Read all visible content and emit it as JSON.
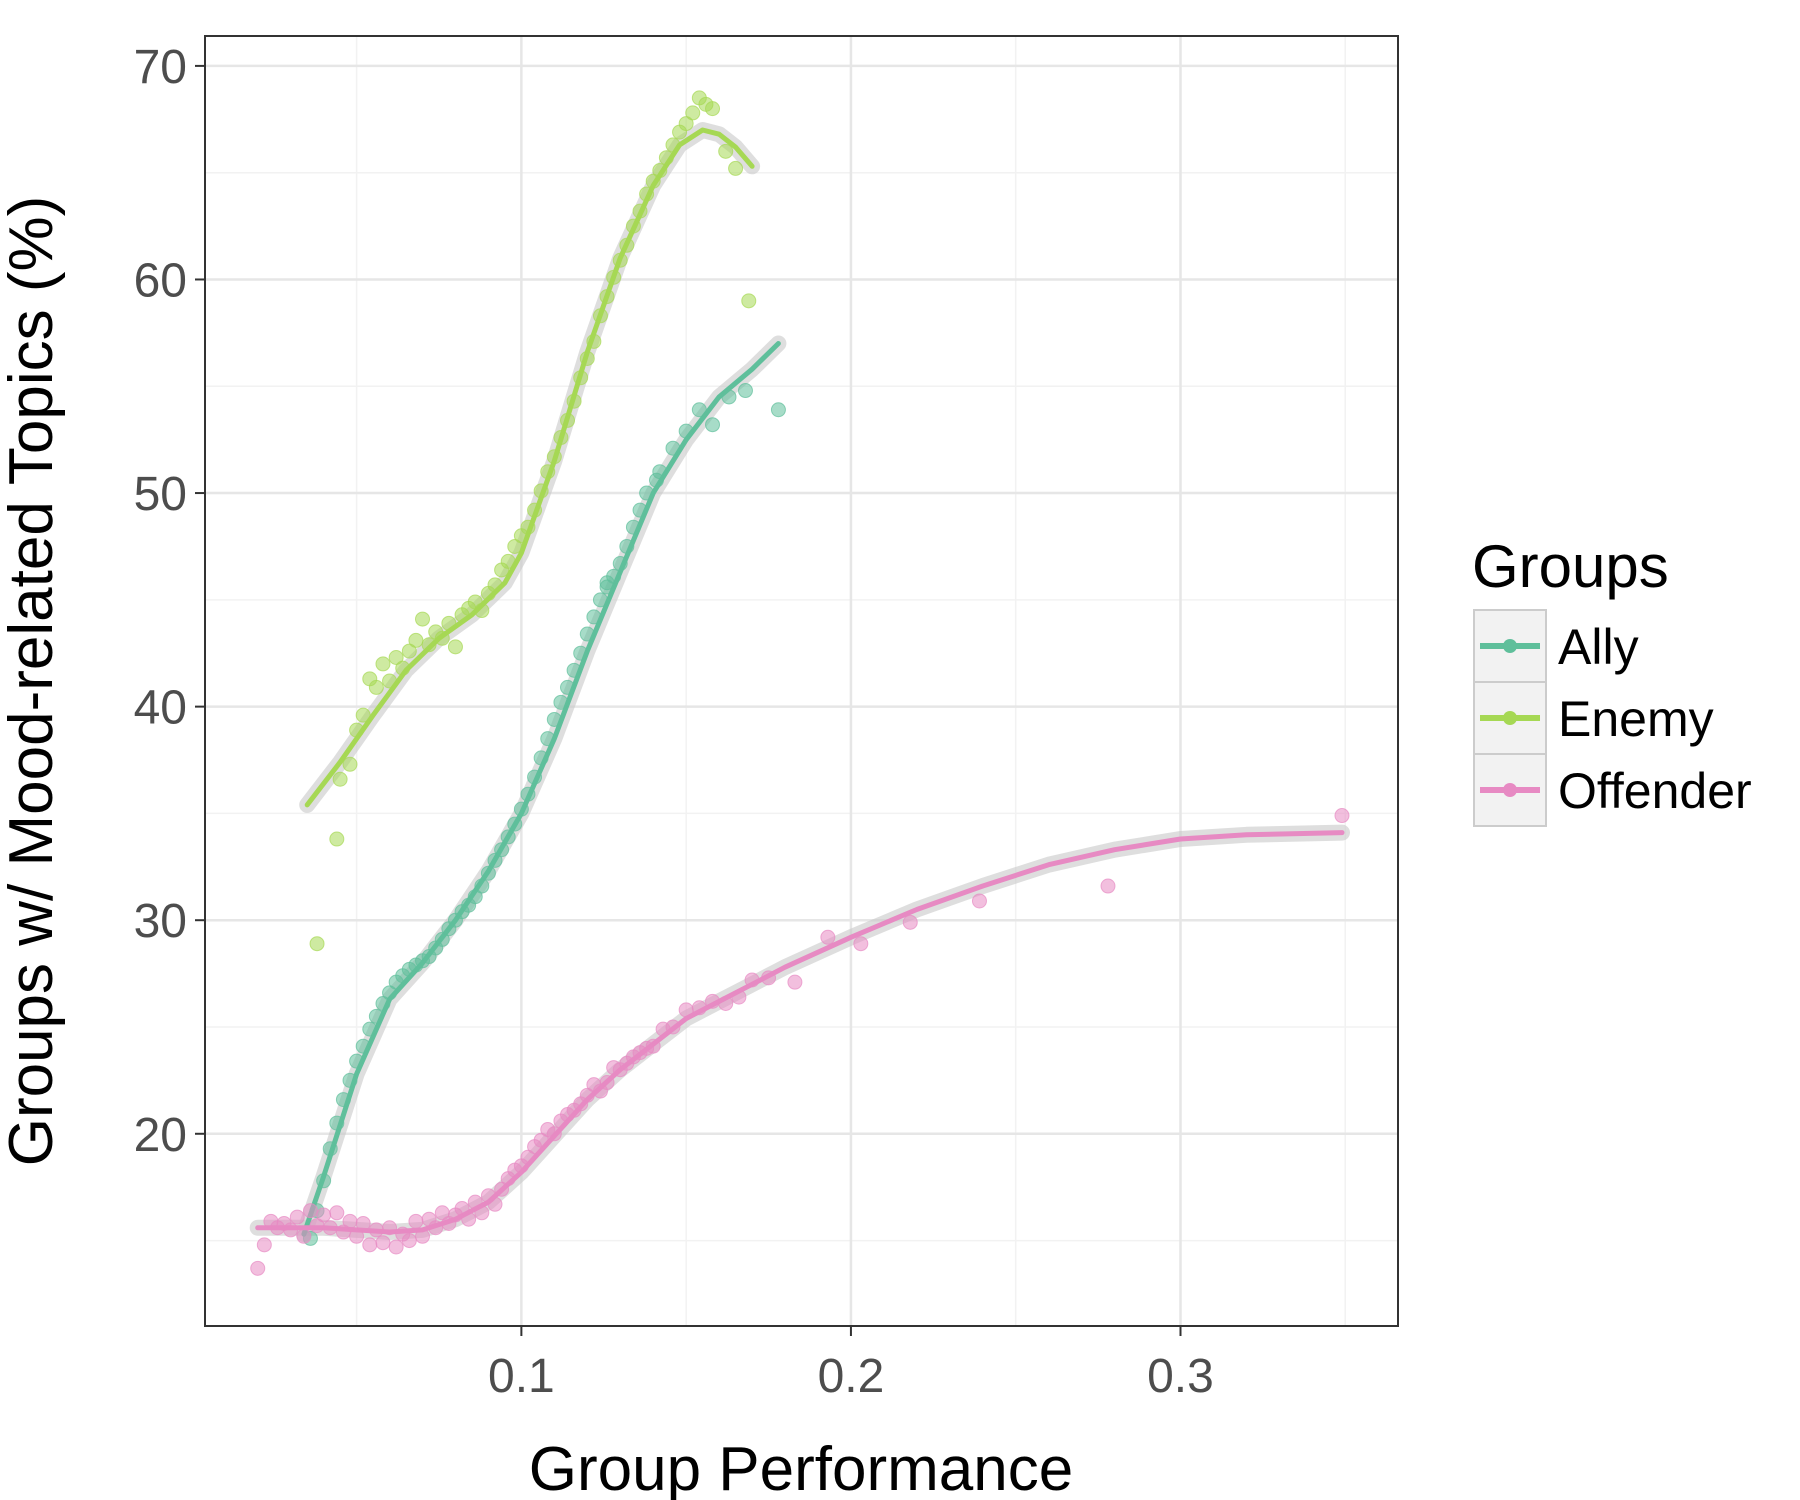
{
  "chart_data": {
    "type": "scatter",
    "title": "",
    "xlabel": "Group Performance",
    "ylabel": "Groups w/ Mood-related Topics (%)",
    "xlim": [
      0.004,
      0.366
    ],
    "ylim": [
      11.0,
      71.4
    ],
    "x_ticks": [
      0.1,
      0.2,
      0.3
    ],
    "x_tick_labels": [
      "0.1",
      "0.2",
      "0.3"
    ],
    "y_ticks": [
      20,
      30,
      40,
      50,
      60,
      70
    ],
    "y_tick_labels": [
      "20",
      "30",
      "40",
      "50",
      "60",
      "70"
    ],
    "grid": true,
    "legend": {
      "title": "Groups",
      "position": "right"
    },
    "series": [
      {
        "name": "Ally",
        "color": "#5fbf9b",
        "points": [
          [
            0.036,
            15.1
          ],
          [
            0.038,
            16.4
          ],
          [
            0.04,
            17.8
          ],
          [
            0.042,
            19.3
          ],
          [
            0.044,
            20.5
          ],
          [
            0.046,
            21.6
          ],
          [
            0.048,
            22.5
          ],
          [
            0.05,
            23.4
          ],
          [
            0.052,
            24.1
          ],
          [
            0.054,
            24.9
          ],
          [
            0.056,
            25.5
          ],
          [
            0.058,
            26.1
          ],
          [
            0.06,
            26.6
          ],
          [
            0.062,
            27.1
          ],
          [
            0.064,
            27.4
          ],
          [
            0.066,
            27.7
          ],
          [
            0.068,
            27.9
          ],
          [
            0.07,
            28.1
          ],
          [
            0.072,
            28.3
          ],
          [
            0.074,
            28.7
          ],
          [
            0.076,
            29.1
          ],
          [
            0.078,
            29.6
          ],
          [
            0.08,
            30.0
          ],
          [
            0.082,
            30.4
          ],
          [
            0.084,
            30.7
          ],
          [
            0.086,
            31.1
          ],
          [
            0.088,
            31.6
          ],
          [
            0.09,
            32.2
          ],
          [
            0.092,
            32.8
          ],
          [
            0.094,
            33.3
          ],
          [
            0.096,
            33.9
          ],
          [
            0.098,
            34.5
          ],
          [
            0.1,
            35.2
          ],
          [
            0.102,
            35.9
          ],
          [
            0.104,
            36.7
          ],
          [
            0.106,
            37.6
          ],
          [
            0.108,
            38.5
          ],
          [
            0.11,
            39.4
          ],
          [
            0.112,
            40.2
          ],
          [
            0.114,
            40.9
          ],
          [
            0.116,
            41.7
          ],
          [
            0.118,
            42.5
          ],
          [
            0.12,
            43.4
          ],
          [
            0.122,
            44.2
          ],
          [
            0.124,
            45.0
          ],
          [
            0.126,
            45.6
          ],
          [
            0.128,
            46.1
          ],
          [
            0.13,
            46.7
          ],
          [
            0.132,
            47.5
          ],
          [
            0.134,
            48.4
          ],
          [
            0.136,
            49.2
          ],
          [
            0.138,
            50.0
          ],
          [
            0.142,
            51.0
          ],
          [
            0.146,
            52.1
          ],
          [
            0.15,
            52.9
          ],
          [
            0.154,
            53.9
          ],
          [
            0.158,
            53.2
          ],
          [
            0.163,
            54.5
          ],
          [
            0.168,
            54.8
          ],
          [
            0.178,
            53.9
          ],
          [
            0.141,
            50.6
          ],
          [
            0.126,
            45.8
          ]
        ],
        "fit": [
          [
            0.034,
            15.3
          ],
          [
            0.04,
            18.0
          ],
          [
            0.05,
            22.8
          ],
          [
            0.06,
            26.3
          ],
          [
            0.07,
            28.0
          ],
          [
            0.08,
            30.0
          ],
          [
            0.09,
            32.3
          ],
          [
            0.1,
            35.0
          ],
          [
            0.11,
            38.5
          ],
          [
            0.12,
            42.6
          ],
          [
            0.13,
            46.3
          ],
          [
            0.14,
            50.0
          ],
          [
            0.15,
            52.5
          ],
          [
            0.16,
            54.5
          ],
          [
            0.17,
            55.8
          ],
          [
            0.178,
            57.0
          ]
        ]
      },
      {
        "name": "Enemy",
        "color": "#a6d854",
        "points": [
          [
            0.038,
            28.9
          ],
          [
            0.044,
            33.8
          ],
          [
            0.045,
            36.6
          ],
          [
            0.048,
            37.3
          ],
          [
            0.05,
            38.9
          ],
          [
            0.052,
            39.6
          ],
          [
            0.054,
            41.3
          ],
          [
            0.056,
            40.9
          ],
          [
            0.058,
            42.0
          ],
          [
            0.06,
            41.2
          ],
          [
            0.062,
            42.3
          ],
          [
            0.064,
            41.8
          ],
          [
            0.066,
            42.6
          ],
          [
            0.068,
            43.1
          ],
          [
            0.07,
            44.1
          ],
          [
            0.072,
            42.9
          ],
          [
            0.074,
            43.5
          ],
          [
            0.076,
            43.2
          ],
          [
            0.078,
            43.9
          ],
          [
            0.08,
            42.8
          ],
          [
            0.082,
            44.3
          ],
          [
            0.084,
            44.6
          ],
          [
            0.086,
            44.9
          ],
          [
            0.088,
            44.5
          ],
          [
            0.09,
            45.3
          ],
          [
            0.092,
            45.7
          ],
          [
            0.094,
            46.4
          ],
          [
            0.096,
            46.8
          ],
          [
            0.098,
            47.5
          ],
          [
            0.1,
            48.0
          ],
          [
            0.102,
            48.4
          ],
          [
            0.104,
            49.2
          ],
          [
            0.106,
            50.1
          ],
          [
            0.108,
            51.0
          ],
          [
            0.11,
            51.7
          ],
          [
            0.112,
            52.6
          ],
          [
            0.114,
            53.4
          ],
          [
            0.116,
            54.3
          ],
          [
            0.118,
            55.4
          ],
          [
            0.12,
            56.3
          ],
          [
            0.122,
            57.1
          ],
          [
            0.124,
            58.3
          ],
          [
            0.126,
            59.2
          ],
          [
            0.128,
            60.1
          ],
          [
            0.13,
            60.9
          ],
          [
            0.132,
            61.6
          ],
          [
            0.134,
            62.5
          ],
          [
            0.136,
            63.2
          ],
          [
            0.138,
            64.0
          ],
          [
            0.14,
            64.6
          ],
          [
            0.142,
            65.1
          ],
          [
            0.144,
            65.7
          ],
          [
            0.146,
            66.3
          ],
          [
            0.148,
            66.9
          ],
          [
            0.15,
            67.3
          ],
          [
            0.152,
            67.8
          ],
          [
            0.154,
            68.5
          ],
          [
            0.156,
            68.2
          ],
          [
            0.158,
            68.0
          ],
          [
            0.162,
            66.0
          ],
          [
            0.165,
            65.2
          ],
          [
            0.169,
            59.0
          ]
        ],
        "fit": [
          [
            0.035,
            35.4
          ],
          [
            0.045,
            37.4
          ],
          [
            0.055,
            39.6
          ],
          [
            0.065,
            41.7
          ],
          [
            0.075,
            43.2
          ],
          [
            0.085,
            44.3
          ],
          [
            0.095,
            45.8
          ],
          [
            0.1,
            47.2
          ],
          [
            0.11,
            51.5
          ],
          [
            0.12,
            56.6
          ],
          [
            0.13,
            61.0
          ],
          [
            0.14,
            64.4
          ],
          [
            0.148,
            66.3
          ],
          [
            0.155,
            67.0
          ],
          [
            0.16,
            66.8
          ],
          [
            0.165,
            66.2
          ],
          [
            0.17,
            65.3
          ]
        ]
      },
      {
        "name": "Offender",
        "color": "#e78ac3",
        "points": [
          [
            0.02,
            13.7
          ],
          [
            0.022,
            14.8
          ],
          [
            0.024,
            15.9
          ],
          [
            0.026,
            15.6
          ],
          [
            0.028,
            15.8
          ],
          [
            0.03,
            15.5
          ],
          [
            0.032,
            16.1
          ],
          [
            0.034,
            15.2
          ],
          [
            0.036,
            16.4
          ],
          [
            0.038,
            15.7
          ],
          [
            0.04,
            16.2
          ],
          [
            0.042,
            15.6
          ],
          [
            0.044,
            16.3
          ],
          [
            0.046,
            15.4
          ],
          [
            0.048,
            15.9
          ],
          [
            0.05,
            15.2
          ],
          [
            0.052,
            15.8
          ],
          [
            0.054,
            14.8
          ],
          [
            0.056,
            15.5
          ],
          [
            0.058,
            14.9
          ],
          [
            0.06,
            15.6
          ],
          [
            0.062,
            14.7
          ],
          [
            0.064,
            15.3
          ],
          [
            0.066,
            15.0
          ],
          [
            0.068,
            15.9
          ],
          [
            0.07,
            15.2
          ],
          [
            0.072,
            16.0
          ],
          [
            0.074,
            15.6
          ],
          [
            0.076,
            16.3
          ],
          [
            0.078,
            15.8
          ],
          [
            0.08,
            16.2
          ],
          [
            0.082,
            16.5
          ],
          [
            0.084,
            16.0
          ],
          [
            0.086,
            16.8
          ],
          [
            0.088,
            16.3
          ],
          [
            0.09,
            17.1
          ],
          [
            0.092,
            16.7
          ],
          [
            0.094,
            17.4
          ],
          [
            0.096,
            17.9
          ],
          [
            0.098,
            18.3
          ],
          [
            0.1,
            18.5
          ],
          [
            0.102,
            18.9
          ],
          [
            0.104,
            19.4
          ],
          [
            0.106,
            19.7
          ],
          [
            0.108,
            20.2
          ],
          [
            0.11,
            20.0
          ],
          [
            0.112,
            20.6
          ],
          [
            0.114,
            20.9
          ],
          [
            0.116,
            21.1
          ],
          [
            0.118,
            21.4
          ],
          [
            0.12,
            21.8
          ],
          [
            0.122,
            22.3
          ],
          [
            0.124,
            22.0
          ],
          [
            0.126,
            22.4
          ],
          [
            0.128,
            23.1
          ],
          [
            0.13,
            23.0
          ],
          [
            0.132,
            23.3
          ],
          [
            0.134,
            23.6
          ],
          [
            0.136,
            23.8
          ],
          [
            0.138,
            24.0
          ],
          [
            0.14,
            24.1
          ],
          [
            0.143,
            24.9
          ],
          [
            0.146,
            25.0
          ],
          [
            0.15,
            25.8
          ],
          [
            0.154,
            25.9
          ],
          [
            0.158,
            26.2
          ],
          [
            0.162,
            26.1
          ],
          [
            0.166,
            26.4
          ],
          [
            0.17,
            27.2
          ],
          [
            0.175,
            27.3
          ],
          [
            0.183,
            27.1
          ],
          [
            0.193,
            29.2
          ],
          [
            0.203,
            28.9
          ],
          [
            0.218,
            29.9
          ],
          [
            0.239,
            30.9
          ],
          [
            0.278,
            31.6
          ],
          [
            0.349,
            34.9
          ]
        ],
        "fit": [
          [
            0.02,
            15.6
          ],
          [
            0.03,
            15.6
          ],
          [
            0.04,
            15.6
          ],
          [
            0.05,
            15.5
          ],
          [
            0.06,
            15.4
          ],
          [
            0.07,
            15.5
          ],
          [
            0.08,
            16.0
          ],
          [
            0.09,
            16.8
          ],
          [
            0.1,
            18.2
          ],
          [
            0.11,
            19.9
          ],
          [
            0.12,
            21.6
          ],
          [
            0.13,
            23.0
          ],
          [
            0.14,
            24.2
          ],
          [
            0.15,
            25.4
          ],
          [
            0.16,
            26.2
          ],
          [
            0.17,
            27.0
          ],
          [
            0.18,
            27.8
          ],
          [
            0.2,
            29.2
          ],
          [
            0.22,
            30.5
          ],
          [
            0.24,
            31.6
          ],
          [
            0.26,
            32.6
          ],
          [
            0.28,
            33.3
          ],
          [
            0.3,
            33.8
          ],
          [
            0.32,
            34.0
          ],
          [
            0.349,
            34.1
          ]
        ]
      }
    ]
  }
}
